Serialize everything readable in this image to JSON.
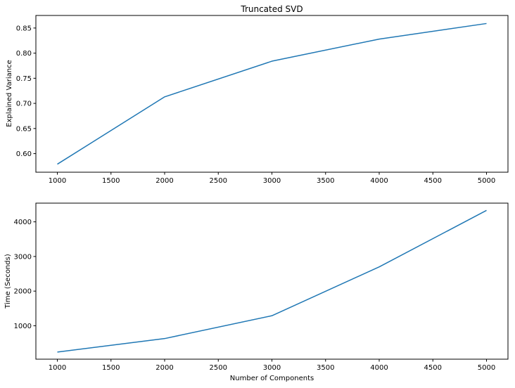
{
  "chart_data": [
    {
      "type": "line",
      "title": "Truncated SVD",
      "xlabel": "",
      "ylabel": "Explained Variance",
      "x": [
        1000,
        2000,
        3000,
        4000,
        5000
      ],
      "series": [
        {
          "values": [
            0.579,
            0.713,
            0.784,
            0.828,
            0.859
          ],
          "color": "#1f77b4"
        }
      ],
      "xlim": [
        800,
        5200
      ],
      "ylim": [
        0.563,
        0.875
      ],
      "xticks": [
        1000,
        1500,
        2000,
        2500,
        3000,
        3500,
        4000,
        4500,
        5000
      ],
      "yticks": [
        0.6,
        0.65,
        0.7,
        0.75,
        0.8,
        0.85
      ],
      "ytick_labels": [
        "0.60",
        "0.65",
        "0.70",
        "0.75",
        "0.80",
        "0.85"
      ],
      "grid": false
    },
    {
      "type": "line",
      "title": "",
      "xlabel": "Number of Components",
      "ylabel": "Time (Seconds)",
      "x": [
        1000,
        2000,
        3000,
        4000,
        5000
      ],
      "series": [
        {
          "values": [
            240,
            630,
            1290,
            2700,
            4330
          ],
          "color": "#1f77b4"
        }
      ],
      "xlim": [
        800,
        5200
      ],
      "ylim": [
        35,
        4540
      ],
      "xticks": [
        1000,
        1500,
        2000,
        2500,
        3000,
        3500,
        4000,
        4500,
        5000
      ],
      "yticks": [
        1000,
        2000,
        3000,
        4000
      ],
      "ytick_labels": [
        "1000",
        "2000",
        "3000",
        "4000"
      ],
      "grid": false
    }
  ]
}
